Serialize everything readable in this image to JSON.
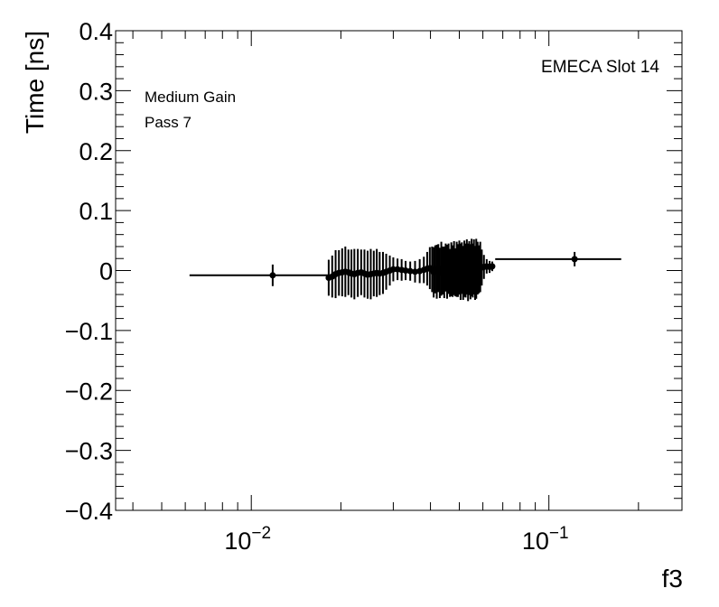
{
  "chart_data": {
    "type": "scatter",
    "xscale": "log",
    "xlim": [
      0.0035,
      0.28
    ],
    "ylim": [
      -0.4,
      0.4
    ],
    "xlabel": "f3",
    "ylabel": "Time [ns]",
    "x_tick_labels": [
      {
        "value": 0.01,
        "base": "10",
        "exp": "−2"
      },
      {
        "value": 0.1,
        "base": "10",
        "exp": "−1"
      }
    ],
    "y_ticks": [
      -0.4,
      -0.3,
      -0.2,
      -0.1,
      0,
      0.1,
      0.2,
      0.3,
      0.4
    ],
    "y_tick_labels": [
      "−0.4",
      "−0.3",
      "−0.2",
      "−0.1",
      "0",
      "0.1",
      "0.2",
      "0.3",
      "0.4"
    ],
    "annotations": {
      "gain": "Medium Gain",
      "pass": "Pass 7",
      "slot": "EMECA Slot 14"
    },
    "grid": false,
    "legend": "none",
    "marker_color": "#000000",
    "series": [
      {
        "points": [
          {
            "x": 0.0118,
            "y": -0.008,
            "xlo": 0.0062,
            "xhi": 0.0182,
            "yerr": 0.018
          },
          {
            "x": 0.0182,
            "y": -0.012,
            "xlo": 0.018,
            "xhi": 0.0184,
            "yerr": 0.03
          },
          {
            "x": 0.0187,
            "y": -0.01,
            "xlo": 0.0185,
            "xhi": 0.0189,
            "yerr": 0.035
          },
          {
            "x": 0.0192,
            "y": -0.006,
            "xlo": 0.019,
            "xhi": 0.0194,
            "yerr": 0.04
          },
          {
            "x": 0.0197,
            "y": -0.004,
            "xlo": 0.0195,
            "xhi": 0.0199,
            "yerr": 0.038
          },
          {
            "x": 0.0202,
            "y": -0.003,
            "xlo": 0.02,
            "xhi": 0.0204,
            "yerr": 0.04
          },
          {
            "x": 0.0207,
            "y": -0.002,
            "xlo": 0.0205,
            "xhi": 0.0209,
            "yerr": 0.042
          },
          {
            "x": 0.0212,
            "y": -0.003,
            "xlo": 0.021,
            "xhi": 0.0214,
            "yerr": 0.038
          },
          {
            "x": 0.0217,
            "y": -0.005,
            "xlo": 0.0215,
            "xhi": 0.0219,
            "yerr": 0.04
          },
          {
            "x": 0.0222,
            "y": -0.006,
            "xlo": 0.022,
            "xhi": 0.0224,
            "yerr": 0.042
          },
          {
            "x": 0.0228,
            "y": -0.004,
            "xlo": 0.0226,
            "xhi": 0.023,
            "yerr": 0.04
          },
          {
            "x": 0.0234,
            "y": -0.003,
            "xlo": 0.0232,
            "xhi": 0.0236,
            "yerr": 0.038
          },
          {
            "x": 0.024,
            "y": -0.005,
            "xlo": 0.0238,
            "xhi": 0.0242,
            "yerr": 0.04
          },
          {
            "x": 0.0246,
            "y": -0.007,
            "xlo": 0.0244,
            "xhi": 0.0248,
            "yerr": 0.04
          },
          {
            "x": 0.0252,
            "y": -0.006,
            "xlo": 0.025,
            "xhi": 0.0254,
            "yerr": 0.042
          },
          {
            "x": 0.0258,
            "y": -0.005,
            "xlo": 0.0256,
            "xhi": 0.026,
            "yerr": 0.038
          },
          {
            "x": 0.0264,
            "y": -0.004,
            "xlo": 0.0262,
            "xhi": 0.0266,
            "yerr": 0.04
          },
          {
            "x": 0.027,
            "y": -0.005,
            "xlo": 0.0268,
            "xhi": 0.0272,
            "yerr": 0.036
          },
          {
            "x": 0.0277,
            "y": -0.004,
            "xlo": 0.0275,
            "xhi": 0.0279,
            "yerr": 0.035
          },
          {
            "x": 0.0284,
            "y": -0.002,
            "xlo": 0.0282,
            "xhi": 0.0286,
            "yerr": 0.03
          },
          {
            "x": 0.0292,
            "y": 0.0,
            "xlo": 0.029,
            "xhi": 0.0294,
            "yerr": 0.025
          },
          {
            "x": 0.03,
            "y": 0.002,
            "xlo": 0.0298,
            "xhi": 0.0302,
            "yerr": 0.02
          },
          {
            "x": 0.031,
            "y": 0.002,
            "xlo": 0.0307,
            "xhi": 0.0313,
            "yerr": 0.018
          },
          {
            "x": 0.032,
            "y": 0.001,
            "xlo": 0.0317,
            "xhi": 0.0323,
            "yerr": 0.018
          },
          {
            "x": 0.033,
            "y": 0.0,
            "xlo": 0.0327,
            "xhi": 0.0333,
            "yerr": 0.016
          },
          {
            "x": 0.0342,
            "y": -0.001,
            "xlo": 0.0339,
            "xhi": 0.0345,
            "yerr": 0.016
          },
          {
            "x": 0.0355,
            "y": -0.002,
            "xlo": 0.0352,
            "xhi": 0.0358,
            "yerr": 0.018
          },
          {
            "x": 0.0368,
            "y": -0.001,
            "xlo": 0.0365,
            "xhi": 0.0371,
            "yerr": 0.02
          },
          {
            "x": 0.038,
            "y": 0.001,
            "xlo": 0.0377,
            "xhi": 0.0383,
            "yerr": 0.022
          },
          {
            "x": 0.039,
            "y": 0.003,
            "xlo": 0.0388,
            "xhi": 0.0392,
            "yerr": 0.028
          },
          {
            "x": 0.0398,
            "y": 0.004,
            "xlo": 0.0396,
            "xhi": 0.04,
            "yerr": 0.035
          },
          {
            "x": 0.0405,
            "y": 0.002,
            "xlo": 0.0403,
            "xhi": 0.0407,
            "yerr": 0.038
          },
          {
            "x": 0.041,
            "y": -0.003,
            "xlo": 0.0408,
            "xhi": 0.0412,
            "yerr": 0.042
          },
          {
            "x": 0.0415,
            "y": 0.002,
            "xlo": 0.0413,
            "xhi": 0.0417,
            "yerr": 0.04
          },
          {
            "x": 0.042,
            "y": -0.002,
            "xlo": 0.0418,
            "xhi": 0.0422,
            "yerr": 0.045
          },
          {
            "x": 0.0425,
            "y": 0.004,
            "xlo": 0.0423,
            "xhi": 0.0427,
            "yerr": 0.04
          },
          {
            "x": 0.043,
            "y": -0.004,
            "xlo": 0.0428,
            "xhi": 0.0432,
            "yerr": 0.042
          },
          {
            "x": 0.0435,
            "y": 0.003,
            "xlo": 0.0433,
            "xhi": 0.0437,
            "yerr": 0.045
          },
          {
            "x": 0.044,
            "y": 0.0,
            "xlo": 0.0438,
            "xhi": 0.0442,
            "yerr": 0.04
          },
          {
            "x": 0.0445,
            "y": -0.003,
            "xlo": 0.0443,
            "xhi": 0.0447,
            "yerr": 0.043
          },
          {
            "x": 0.045,
            "y": 0.005,
            "xlo": 0.0448,
            "xhi": 0.0452,
            "yerr": 0.04
          },
          {
            "x": 0.0455,
            "y": -0.002,
            "xlo": 0.0453,
            "xhi": 0.0457,
            "yerr": 0.045
          },
          {
            "x": 0.046,
            "y": 0.003,
            "xlo": 0.0458,
            "xhi": 0.0462,
            "yerr": 0.042
          },
          {
            "x": 0.0465,
            "y": -0.004,
            "xlo": 0.0463,
            "xhi": 0.0467,
            "yerr": 0.04
          },
          {
            "x": 0.047,
            "y": 0.002,
            "xlo": 0.0468,
            "xhi": 0.0472,
            "yerr": 0.045
          },
          {
            "x": 0.0475,
            "y": -0.001,
            "xlo": 0.0473,
            "xhi": 0.0477,
            "yerr": 0.043
          },
          {
            "x": 0.048,
            "y": 0.004,
            "xlo": 0.0478,
            "xhi": 0.0482,
            "yerr": 0.045
          },
          {
            "x": 0.0485,
            "y": -0.003,
            "xlo": 0.0483,
            "xhi": 0.0487,
            "yerr": 0.04
          },
          {
            "x": 0.049,
            "y": 0.002,
            "xlo": 0.0488,
            "xhi": 0.0492,
            "yerr": 0.046
          },
          {
            "x": 0.0495,
            "y": 0.0,
            "xlo": 0.0493,
            "xhi": 0.0497,
            "yerr": 0.044
          },
          {
            "x": 0.05,
            "y": 0.005,
            "xlo": 0.0498,
            "xhi": 0.0502,
            "yerr": 0.045
          },
          {
            "x": 0.0505,
            "y": -0.002,
            "xlo": 0.0503,
            "xhi": 0.0507,
            "yerr": 0.047
          },
          {
            "x": 0.051,
            "y": 0.004,
            "xlo": 0.0508,
            "xhi": 0.0512,
            "yerr": 0.043
          },
          {
            "x": 0.0515,
            "y": -0.004,
            "xlo": 0.0513,
            "xhi": 0.0517,
            "yerr": 0.045
          },
          {
            "x": 0.052,
            "y": 0.003,
            "xlo": 0.0518,
            "xhi": 0.0522,
            "yerr": 0.047
          },
          {
            "x": 0.0525,
            "y": 0.0,
            "xlo": 0.0523,
            "xhi": 0.0527,
            "yerr": 0.045
          },
          {
            "x": 0.053,
            "y": 0.006,
            "xlo": 0.0528,
            "xhi": 0.0532,
            "yerr": 0.046
          },
          {
            "x": 0.0535,
            "y": -0.003,
            "xlo": 0.0533,
            "xhi": 0.0537,
            "yerr": 0.048
          },
          {
            "x": 0.054,
            "y": 0.004,
            "xlo": 0.0538,
            "xhi": 0.0542,
            "yerr": 0.045
          },
          {
            "x": 0.0545,
            "y": -0.002,
            "xlo": 0.0543,
            "xhi": 0.0547,
            "yerr": 0.046
          },
          {
            "x": 0.055,
            "y": 0.005,
            "xlo": 0.0548,
            "xhi": 0.0552,
            "yerr": 0.048
          },
          {
            "x": 0.0555,
            "y": 0.0,
            "xlo": 0.0553,
            "xhi": 0.0557,
            "yerr": 0.045
          },
          {
            "x": 0.056,
            "y": 0.006,
            "xlo": 0.0558,
            "xhi": 0.0562,
            "yerr": 0.046
          },
          {
            "x": 0.0565,
            "y": -0.004,
            "xlo": 0.0563,
            "xhi": 0.0567,
            "yerr": 0.045
          },
          {
            "x": 0.057,
            "y": 0.003,
            "xlo": 0.0568,
            "xhi": 0.0572,
            "yerr": 0.05
          },
          {
            "x": 0.0576,
            "y": 0.004,
            "xlo": 0.0574,
            "xhi": 0.0578,
            "yerr": 0.044
          },
          {
            "x": 0.0582,
            "y": 0.002,
            "xlo": 0.058,
            "xhi": 0.0584,
            "yerr": 0.04
          },
          {
            "x": 0.0588,
            "y": 0.006,
            "xlo": 0.0586,
            "xhi": 0.059,
            "yerr": 0.042
          },
          {
            "x": 0.0595,
            "y": 0.005,
            "xlo": 0.0593,
            "xhi": 0.0597,
            "yerr": 0.03
          },
          {
            "x": 0.0605,
            "y": 0.006,
            "xlo": 0.0603,
            "xhi": 0.0607,
            "yerr": 0.02
          },
          {
            "x": 0.0618,
            "y": 0.007,
            "xlo": 0.0615,
            "xhi": 0.0621,
            "yerr": 0.012
          },
          {
            "x": 0.0632,
            "y": 0.006,
            "xlo": 0.0629,
            "xhi": 0.0635,
            "yerr": 0.01
          },
          {
            "x": 0.0645,
            "y": 0.007,
            "xlo": 0.0642,
            "xhi": 0.0648,
            "yerr": 0.008
          },
          {
            "x": 0.122,
            "y": 0.019,
            "xlo": 0.066,
            "xhi": 0.175,
            "yerr": 0.012
          }
        ]
      }
    ]
  }
}
